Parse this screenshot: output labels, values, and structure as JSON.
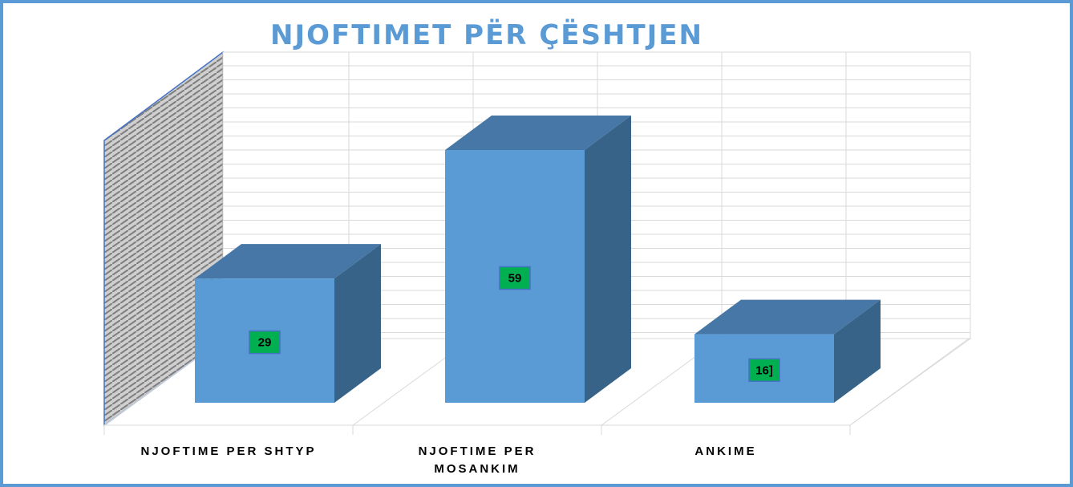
{
  "chart_data": {
    "type": "bar3d",
    "title": "NJOFTIMET PËR ÇËSHTJEN",
    "categories": [
      "NJOFTIME PER SHTYP",
      "NJOFTIME PER MOSANKIM",
      "ANKIME"
    ],
    "values": [
      29,
      59,
      16
    ],
    "value_labels": [
      "29",
      "59",
      "16]"
    ],
    "color": "#5b9bd5",
    "label_color": "#00b050",
    "ylim": [
      0,
      68
    ],
    "grid": true
  }
}
